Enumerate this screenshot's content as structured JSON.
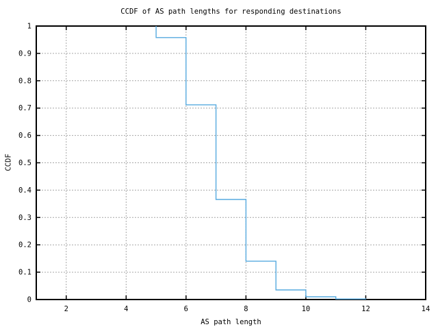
{
  "chart_data": {
    "type": "line",
    "render": "step",
    "title": "CCDF of AS path lengths for responding destinations",
    "xlabel": "AS path length",
    "ylabel": "CCDF",
    "xlim": [
      1,
      14
    ],
    "ylim": [
      0,
      1
    ],
    "grid": true,
    "grid_color": "#a6a6a6",
    "frame_color": "#000000",
    "x_ticks": [
      {
        "value": 2,
        "label": "2"
      },
      {
        "value": 4,
        "label": "4"
      },
      {
        "value": 6,
        "label": "6"
      },
      {
        "value": 8,
        "label": "8"
      },
      {
        "value": 10,
        "label": "10"
      },
      {
        "value": 12,
        "label": "12"
      },
      {
        "value": 14,
        "label": "14"
      }
    ],
    "y_ticks": [
      {
        "value": 0,
        "label": "0"
      },
      {
        "value": 0.1,
        "label": "0.1"
      },
      {
        "value": 0.2,
        "label": "0.2"
      },
      {
        "value": 0.3,
        "label": "0.3"
      },
      {
        "value": 0.4,
        "label": "0.4"
      },
      {
        "value": 0.5,
        "label": "0.5"
      },
      {
        "value": 0.6,
        "label": "0.6"
      },
      {
        "value": 0.7,
        "label": "0.7"
      },
      {
        "value": 0.8,
        "label": "0.8"
      },
      {
        "value": 0.9,
        "label": "0.9"
      },
      {
        "value": 1,
        "label": "1"
      }
    ],
    "series": [
      {
        "name": "CCDF of AS path length",
        "color": "#56aadf",
        "plateaus": [
          {
            "from": 5,
            "to": 6,
            "ccdf": 0.958
          },
          {
            "from": 6,
            "to": 7,
            "ccdf": 0.712
          },
          {
            "from": 7,
            "to": 8,
            "ccdf": 0.366
          },
          {
            "from": 8,
            "to": 9,
            "ccdf": 0.14
          },
          {
            "from": 9,
            "to": 10,
            "ccdf": 0.035
          },
          {
            "from": 10,
            "to": 11,
            "ccdf": 0.01
          },
          {
            "from": 11,
            "to": 12,
            "ccdf": 0.002
          }
        ],
        "points_step": [
          [
            5,
            1.0
          ],
          [
            5,
            0.958
          ],
          [
            6,
            0.958
          ],
          [
            6,
            0.712
          ],
          [
            7,
            0.712
          ],
          [
            7,
            0.366
          ],
          [
            8,
            0.366
          ],
          [
            8,
            0.14
          ],
          [
            9,
            0.14
          ],
          [
            9,
            0.035
          ],
          [
            10,
            0.035
          ],
          [
            10,
            0.01
          ],
          [
            11,
            0.01
          ],
          [
            11,
            0.002
          ],
          [
            12,
            0.002
          ],
          [
            12,
            0
          ]
        ]
      }
    ]
  }
}
